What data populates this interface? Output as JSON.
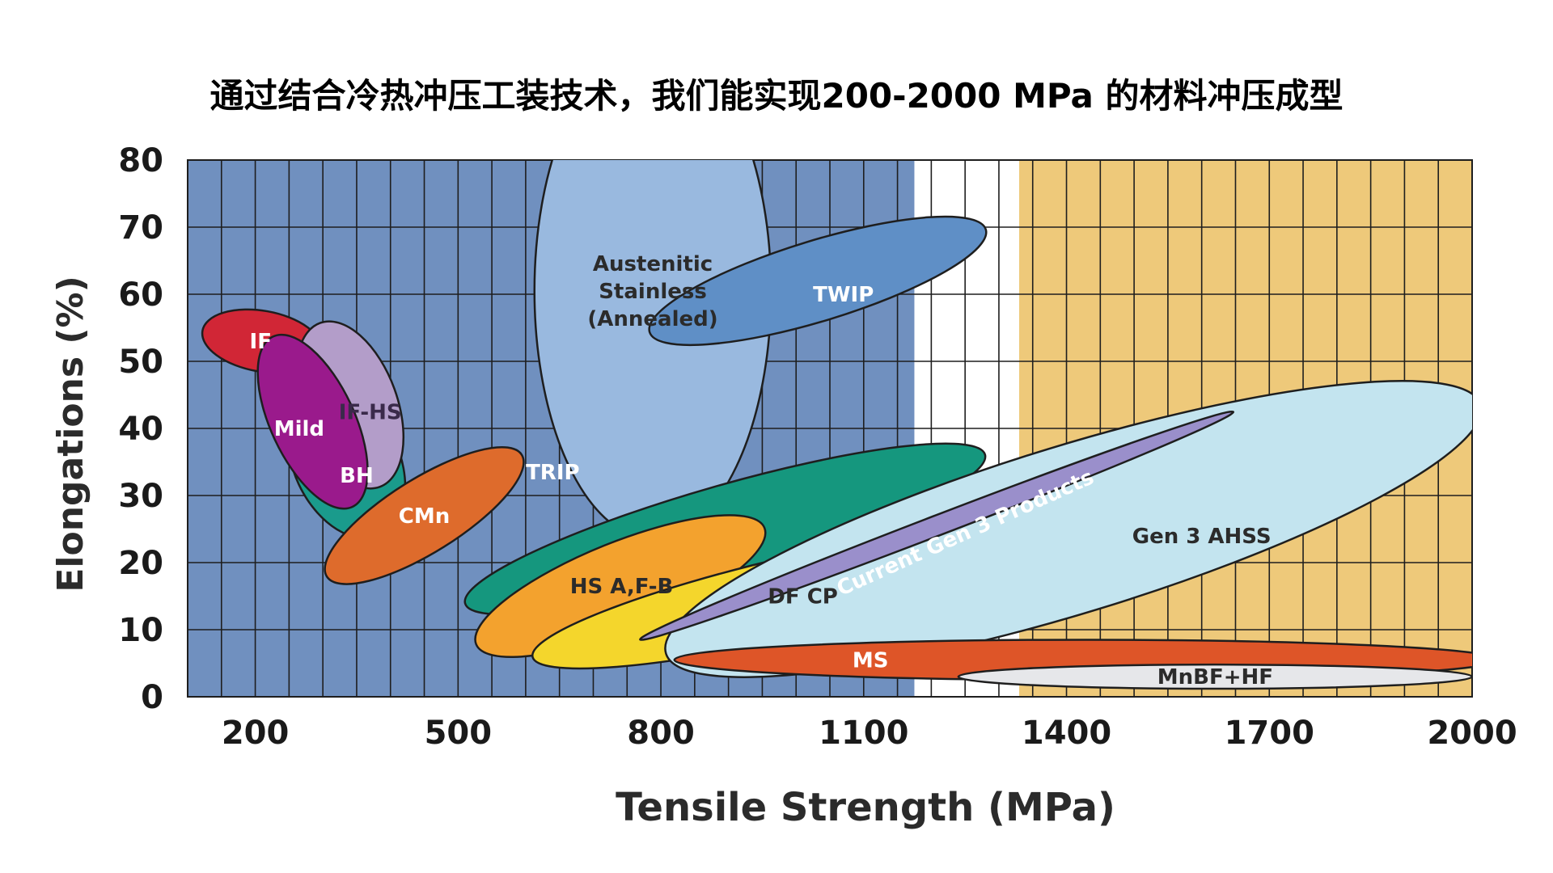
{
  "chart_data": {
    "type": "scatter",
    "title": "通过结合冷热冲压工装技术，我们能实现200-2000 MPa 的材料冲压成型",
    "xlabel": "Tensile Strength (MPa)",
    "ylabel": "Elongations (%)",
    "xlim": [
      100,
      2000
    ],
    "ylim": [
      0,
      80
    ],
    "x_ticks": [
      200,
      500,
      800,
      1100,
      1400,
      1700,
      2000
    ],
    "y_ticks": [
      0,
      10,
      20,
      30,
      40,
      50,
      60,
      70,
      80
    ],
    "grid": true,
    "background_bands": [
      {
        "x0": 100,
        "x1": 1175,
        "color": "#7090bf"
      },
      {
        "x0": 1175,
        "x1": 1330,
        "color": "#ffffff"
      },
      {
        "x0": 1330,
        "x1": 2000,
        "color": "#eec97a"
      }
    ],
    "regions": [
      {
        "name": "IF",
        "label": [
          "IF"
        ],
        "cx": 210,
        "cy": 53,
        "rx": 45,
        "ry": 9,
        "angle": -80,
        "color": "#d12636",
        "text_color": "#ffffff",
        "label_x": 208,
        "label_y": 53
      },
      {
        "name": "BH",
        "label": [
          "BH"
        ],
        "cx": 335,
        "cy": 35,
        "rx": 78,
        "ry": 12,
        "angle": -25,
        "color": "#1a9b8c",
        "text_color": "#ffffff",
        "label_x": 350,
        "label_y": 33
      },
      {
        "name": "IF-HS",
        "label": [
          "IF-HS"
        ],
        "cx": 340,
        "cy": 43.5,
        "rx": 70,
        "ry": 13,
        "angle": -20,
        "color": "#b39dc9",
        "text_color": "#3a2a4a",
        "label_x": 370,
        "label_y": 42.5
      },
      {
        "name": "Mild",
        "label": [
          "Mild"
        ],
        "cx": 285,
        "cy": 41,
        "rx": 62,
        "ry": 14,
        "angle": -25,
        "color": "#9a1a8c",
        "text_color": "#ffffff",
        "label_x": 265,
        "label_y": 40
      },
      {
        "name": "CMn",
        "label": [
          "CMn"
        ],
        "cx": 450,
        "cy": 27,
        "rx": 170,
        "ry": 5.5,
        "angle": -32,
        "color": "#de6b2c",
        "text_color": "#ffffff",
        "label_x": 450,
        "label_y": 27
      },
      {
        "name": "Austenitic Stainless (Annealed)",
        "label": [
          "Austenitic",
          "Stainless",
          "(Annealed)"
        ],
        "cx": 788,
        "cy": 60.5,
        "rx": 175,
        "ry": 37,
        "angle": 0,
        "color": "#99b9df",
        "text_color": "#2b2b2b",
        "label_x": 788,
        "label_y": 60.5
      },
      {
        "name": "TWIP",
        "label": [
          "TWIP"
        ],
        "cx": 1032,
        "cy": 62,
        "rx": 260,
        "ry": 6,
        "angle": -17,
        "color": "#5f8fc6",
        "text_color": "#ffffff",
        "label_x": 1070,
        "label_y": 60
      },
      {
        "name": "TRIP",
        "label": [
          "TRIP"
        ],
        "cx": 895,
        "cy": 25,
        "rx": 400,
        "ry": 6.5,
        "angle": -16,
        "color": "#15977e",
        "text_color": "#ffffff",
        "label_x": 640,
        "label_y": 33.5
      },
      {
        "name": "HS A,F-B",
        "label": [
          "HS A,F-B"
        ],
        "cx": 740,
        "cy": 16.5,
        "rx": 230,
        "ry": 6.5,
        "angle": -22,
        "color": "#f3a22e",
        "text_color": "#2b2b2b",
        "label_x": 742,
        "label_y": 16.5
      },
      {
        "name": "DF CP",
        "label": [
          "DF CP"
        ],
        "cx": 1000,
        "cy": 15,
        "rx": 400,
        "ry": 6,
        "angle": -13,
        "color": "#f4d62c",
        "text_color": "#2b2b2b",
        "label_x": 1010,
        "label_y": 15
      },
      {
        "name": "Gen 3 AHSS",
        "label": [
          "Gen 3 AHSS"
        ],
        "cx": 1410,
        "cy": 25,
        "rx": 630,
        "ry": 12.5,
        "angle": -17,
        "color": "#c3e4ef",
        "text_color": "#2b2b2b",
        "label_x": 1600,
        "label_y": 24
      },
      {
        "name": "Current Gen 3 Products",
        "label": [
          "Current Gen 3 Products"
        ],
        "cx": 1208,
        "cy": 25.5,
        "rx": 470,
        "ry": 1.5,
        "angle": -21,
        "color": "#9a8fcb",
        "text_color": "#ffffff",
        "label_x": 1250,
        "label_y": 24.5
      },
      {
        "name": "MS",
        "label": [
          "MS"
        ],
        "cx": 1430,
        "cy": 5.5,
        "rx": 610,
        "ry": 3,
        "angle": 0,
        "color": "#de5528",
        "text_color": "#ffffff",
        "label_x": 1110,
        "label_y": 5.5
      },
      {
        "name": "MnBF+HF",
        "label": [
          "MnBF+HF"
        ],
        "cx": 1620,
        "cy": 3,
        "rx": 380,
        "ry": 1.8,
        "angle": 0,
        "color": "#e6e7ea",
        "text_color": "#2b2b2b",
        "label_x": 1620,
        "label_y": 3
      }
    ]
  }
}
